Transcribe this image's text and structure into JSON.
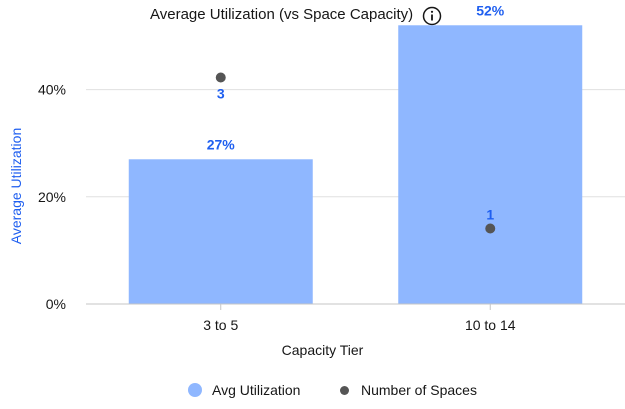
{
  "title": "Average Utilization (vs Space Capacity)",
  "info_icon": "info-icon",
  "colors": {
    "bar": "#8fb7ff",
    "dot": "#555555",
    "label": "#1f5ff0",
    "grid": "#e0e0e0"
  },
  "legend": [
    {
      "label": "Avg Utilization",
      "shape": "circle-large"
    },
    {
      "label": "Number of Spaces",
      "shape": "circle-small"
    }
  ],
  "chart_data": {
    "type": "bar",
    "categories": [
      "3 to 5",
      "10 to 14"
    ],
    "xlabel": "Capacity Tier",
    "ylabel": "Average Utilization",
    "ylim": [
      0,
      0.5
    ],
    "yticks": [
      0,
      0.2,
      0.4
    ],
    "ytick_labels": [
      "0%",
      "20%",
      "40%"
    ],
    "grid": true,
    "legend_position": "bottom",
    "series": [
      {
        "name": "Avg Utilization",
        "type": "bar",
        "values": [
          0.27,
          0.52
        ],
        "labels": [
          "27%",
          "52%"
        ]
      },
      {
        "name": "Number of Spaces",
        "type": "scatter",
        "values": [
          3,
          1
        ],
        "labels": [
          "3",
          "1"
        ],
        "ylim": [
          0,
          3.55
        ]
      }
    ]
  }
}
